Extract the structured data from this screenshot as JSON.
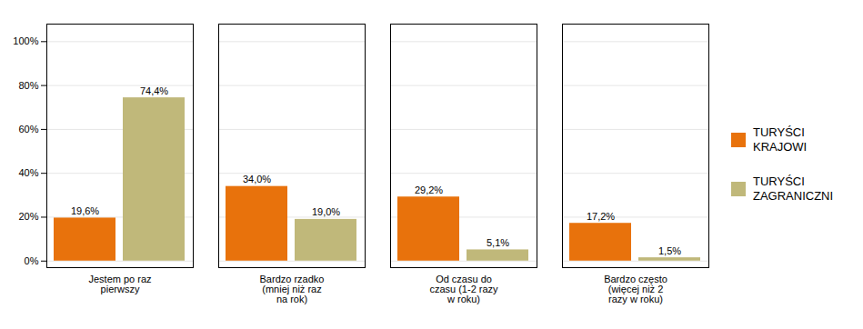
{
  "chart_data": {
    "type": "bar",
    "categories": [
      "Jestem po raz\npierwszy",
      "Bardzo rzadko\n(mniej niż raz\nna rok)",
      "Od czasu do\nczasu (1-2 razy\nw roku)",
      "Bardzo często\n(więcej niż 2\nrazy w roku)"
    ],
    "series": [
      {
        "name": "TURYŚCI\nKRAJOWI",
        "color": "#E8720C",
        "values": [
          19.6,
          34.0,
          29.2,
          17.2
        ],
        "value_labels": [
          "19,6%",
          "34,0%",
          "29,2%",
          "17,2%"
        ]
      },
      {
        "name": "TURYŚCI\nZAGRANICZNI",
        "color": "#C0B87A",
        "values": [
          74.4,
          19.0,
          5.1,
          1.5
        ],
        "value_labels": [
          "74,4%",
          "19,0%",
          "5,1%",
          "1,5%"
        ]
      }
    ],
    "ylim": [
      -3,
      108
    ],
    "yticks": [
      {
        "value": 0,
        "label": "0%"
      },
      {
        "value": 20,
        "label": "20%"
      },
      {
        "value": 40,
        "label": "40%"
      },
      {
        "value": 60,
        "label": "60%"
      },
      {
        "value": 80,
        "label": "80%"
      },
      {
        "value": 100,
        "label": "100%"
      }
    ],
    "grid": true,
    "legend": "right",
    "data_labels": true
  }
}
